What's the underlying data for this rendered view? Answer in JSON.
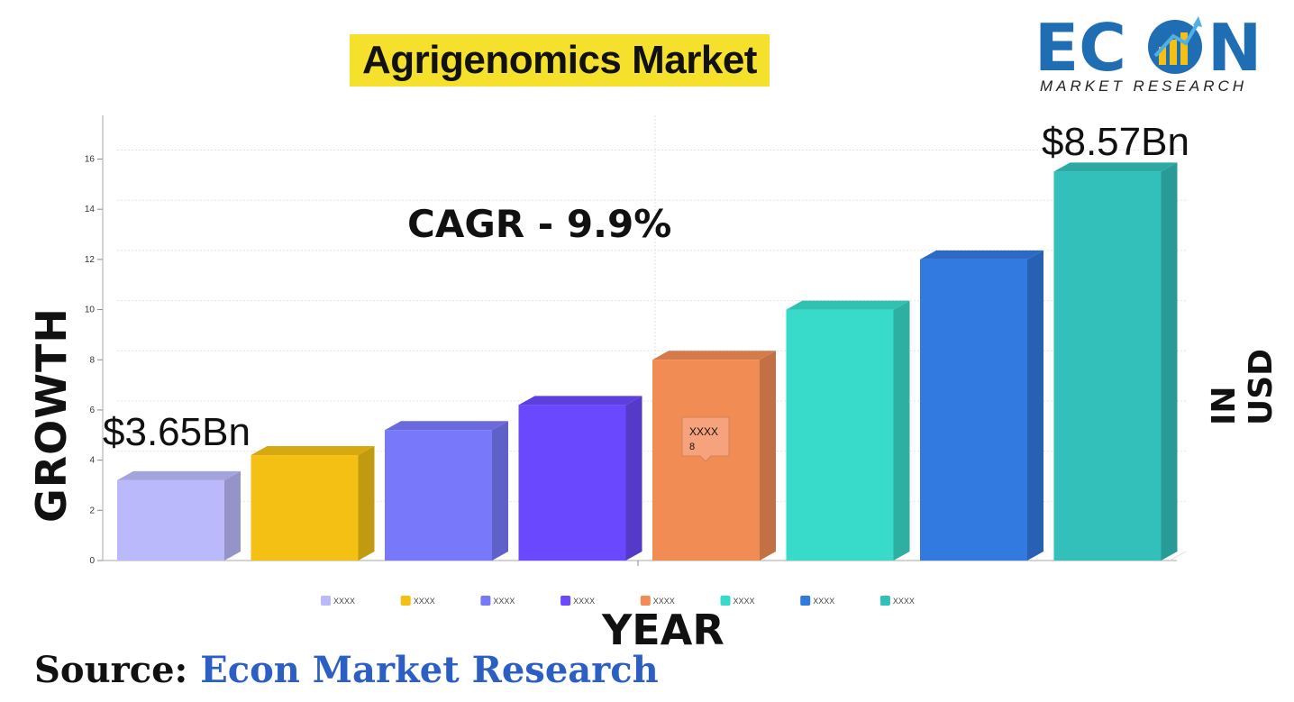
{
  "title": "Agrigenomics Market",
  "logo": {
    "word": "ECON",
    "subtitle": "MARKET RESEARCH"
  },
  "y_axis_label": "GROWTH",
  "x_axis_label": "YEAR",
  "unit_label": "IN USD",
  "source": {
    "label": "Source:",
    "value": "Econ Market Research"
  },
  "cagr_label": "CAGR - 9.9%",
  "start_value_label": "$3.65Bn",
  "end_value_label": "$8.57Bn",
  "tooltip": {
    "category": "XXXX",
    "value": "8"
  },
  "chart_data": {
    "type": "bar",
    "categories": [
      "XXXX",
      "XXXX",
      "XXXX",
      "XXXX",
      "XXXX",
      "XXXX",
      "XXXX",
      "XXXX"
    ],
    "values": [
      3.2,
      4.2,
      5.2,
      6.2,
      8.0,
      10.0,
      12.0,
      15.5
    ],
    "colors": [
      "#b9b9fb",
      "#f3c013",
      "#7878fb",
      "#6a48fd",
      "#f28c55",
      "#38dbc9",
      "#3279e0",
      "#33c0ba"
    ],
    "ylim": [
      0,
      16
    ],
    "yticks": [
      0,
      2,
      4,
      6,
      8,
      10,
      12,
      14,
      16
    ],
    "grid": true,
    "legend": "bottom"
  }
}
